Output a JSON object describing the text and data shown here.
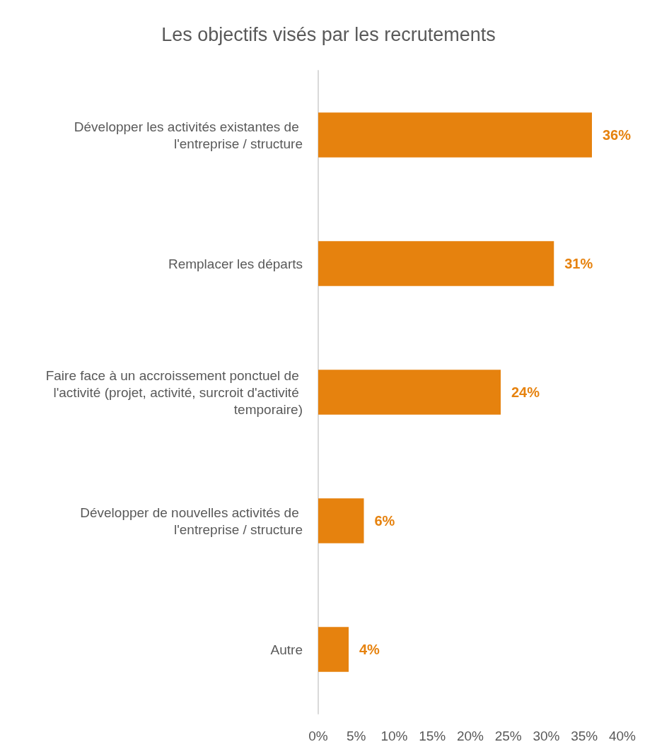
{
  "chart_data": {
    "type": "bar",
    "orientation": "horizontal",
    "title": "Les objectifs visés par les recrutements",
    "categories": [
      "Développer les activités existantes de l'entreprise / structure",
      "Remplacer les départs",
      "Faire face à un accroissement ponctuel de l'activité (projet, activité, surcroit d'activité temporaire)",
      "Développer de nouvelles activités de l'entreprise / structure",
      "Autre"
    ],
    "values": [
      36,
      31,
      24,
      6,
      4
    ],
    "value_labels": [
      "36%",
      "31%",
      "24%",
      "6%",
      "4%"
    ],
    "color": "#e6820e",
    "xlim": [
      0,
      40
    ],
    "xticks": [
      {
        "value": 0,
        "label": "0%"
      },
      {
        "value": 5,
        "label": "5%"
      },
      {
        "value": 10,
        "label": "10%"
      },
      {
        "value": 15,
        "label": "15%"
      },
      {
        "value": 20,
        "label": "20%"
      },
      {
        "value": 25,
        "label": "25%"
      },
      {
        "value": 30,
        "label": "30%"
      },
      {
        "value": 35,
        "label": "35%"
      },
      {
        "value": 40,
        "label": "40%"
      }
    ],
    "grid": false
  }
}
